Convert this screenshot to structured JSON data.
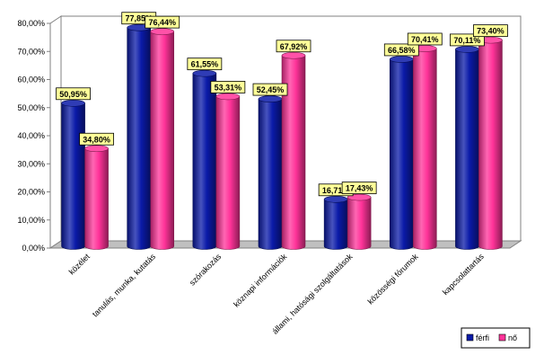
{
  "chart_data": {
    "type": "bar",
    "title": "",
    "xlabel": "",
    "ylabel": "",
    "ylim": [
      0,
      80
    ],
    "y_tick_labels": [
      "0,00%",
      "10,00%",
      "20,00%",
      "30,00%",
      "40,00%",
      "50,00%",
      "60,00%",
      "70,00%",
      "80,00%"
    ],
    "grid": false,
    "legend_position": "bottom-right",
    "style": "3d-cylinder",
    "categories": [
      "közélet",
      "tanulás, munka, kutatás",
      "szórakozás",
      "köznapi információk",
      "állami, hatósági szolgáltatások",
      "közösségi fórumok",
      "kapcsolattartás"
    ],
    "series": [
      {
        "name": "férfi",
        "color": "#0a1aa8",
        "values": [
          50.95,
          77.85,
          61.55,
          52.45,
          16.71,
          66.58,
          70.11
        ],
        "labels": [
          "50,95%",
          "77,85%",
          "61,55%",
          "52,45%",
          "16,71%",
          "66,58%",
          "70,11%"
        ]
      },
      {
        "name": "nő",
        "color": "#ff3399",
        "values": [
          34.8,
          76.44,
          53.31,
          67.92,
          17.43,
          70.41,
          73.4
        ],
        "labels": [
          "34,80%",
          "76,44%",
          "53,31%",
          "67,92%",
          "17,43%",
          "70,41%",
          "73,40%"
        ]
      }
    ],
    "data_label_bg": "#ffff99"
  }
}
